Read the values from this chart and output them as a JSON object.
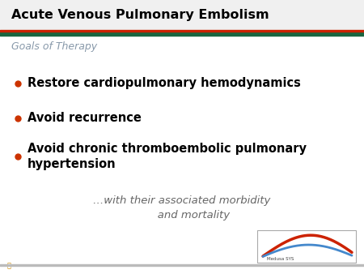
{
  "title": "Acute Venous Pulmonary Embolism",
  "subtitle": "Goals of Therapy",
  "bullets": [
    "Restore cardiopulmonary hemodynamics",
    "Avoid recurrence",
    "Avoid chronic thromboembolic pulmonary\nhypertension"
  ],
  "footer_line1": "…with their associated morbidity",
  "footer_line2": "       and mortality",
  "bg_color": "#ffffff",
  "title_bg_color": "#f5f5f5",
  "title_color": "#000000",
  "subtitle_color": "#8899aa",
  "bullet_color": "#000000",
  "bullet_dot_color": "#cc3300",
  "footer_color": "#666666",
  "bar_dark_color": "#1a6640",
  "bar_light_color": "#cc2200",
  "title_fontsize": 11.5,
  "subtitle_fontsize": 9,
  "bullet_fontsize": 10.5,
  "footer_fontsize": 9.5
}
